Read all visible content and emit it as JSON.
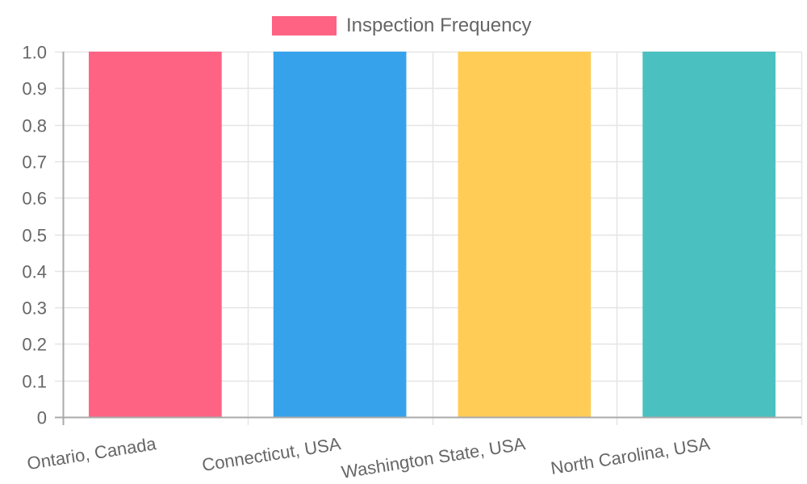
{
  "chart_data": {
    "type": "bar",
    "title": "",
    "xlabel": "",
    "ylabel": "",
    "categories": [
      "Ontario, Canada",
      "Connecticut, USA",
      "Washington State, USA",
      "North Carolina, USA"
    ],
    "series": [
      {
        "name": "Inspection Frequency",
        "values": [
          1,
          1,
          1,
          1
        ],
        "colors": [
          "#ff6384",
          "#36a2eb",
          "#ffcd56",
          "#4bc0c0"
        ]
      }
    ],
    "ylim": [
      0,
      1.0
    ],
    "yticks": [
      "0",
      "0.1",
      "0.2",
      "0.3",
      "0.4",
      "0.5",
      "0.6",
      "0.7",
      "0.8",
      "0.9",
      "1.0"
    ],
    "grid": true,
    "legend_position": "top"
  },
  "legend": {
    "label": "Inspection Frequency",
    "color": "#ff6384"
  },
  "colors": {
    "grid": "#e5e5e5",
    "axis": "#aaaaaa",
    "text": "#666666"
  }
}
